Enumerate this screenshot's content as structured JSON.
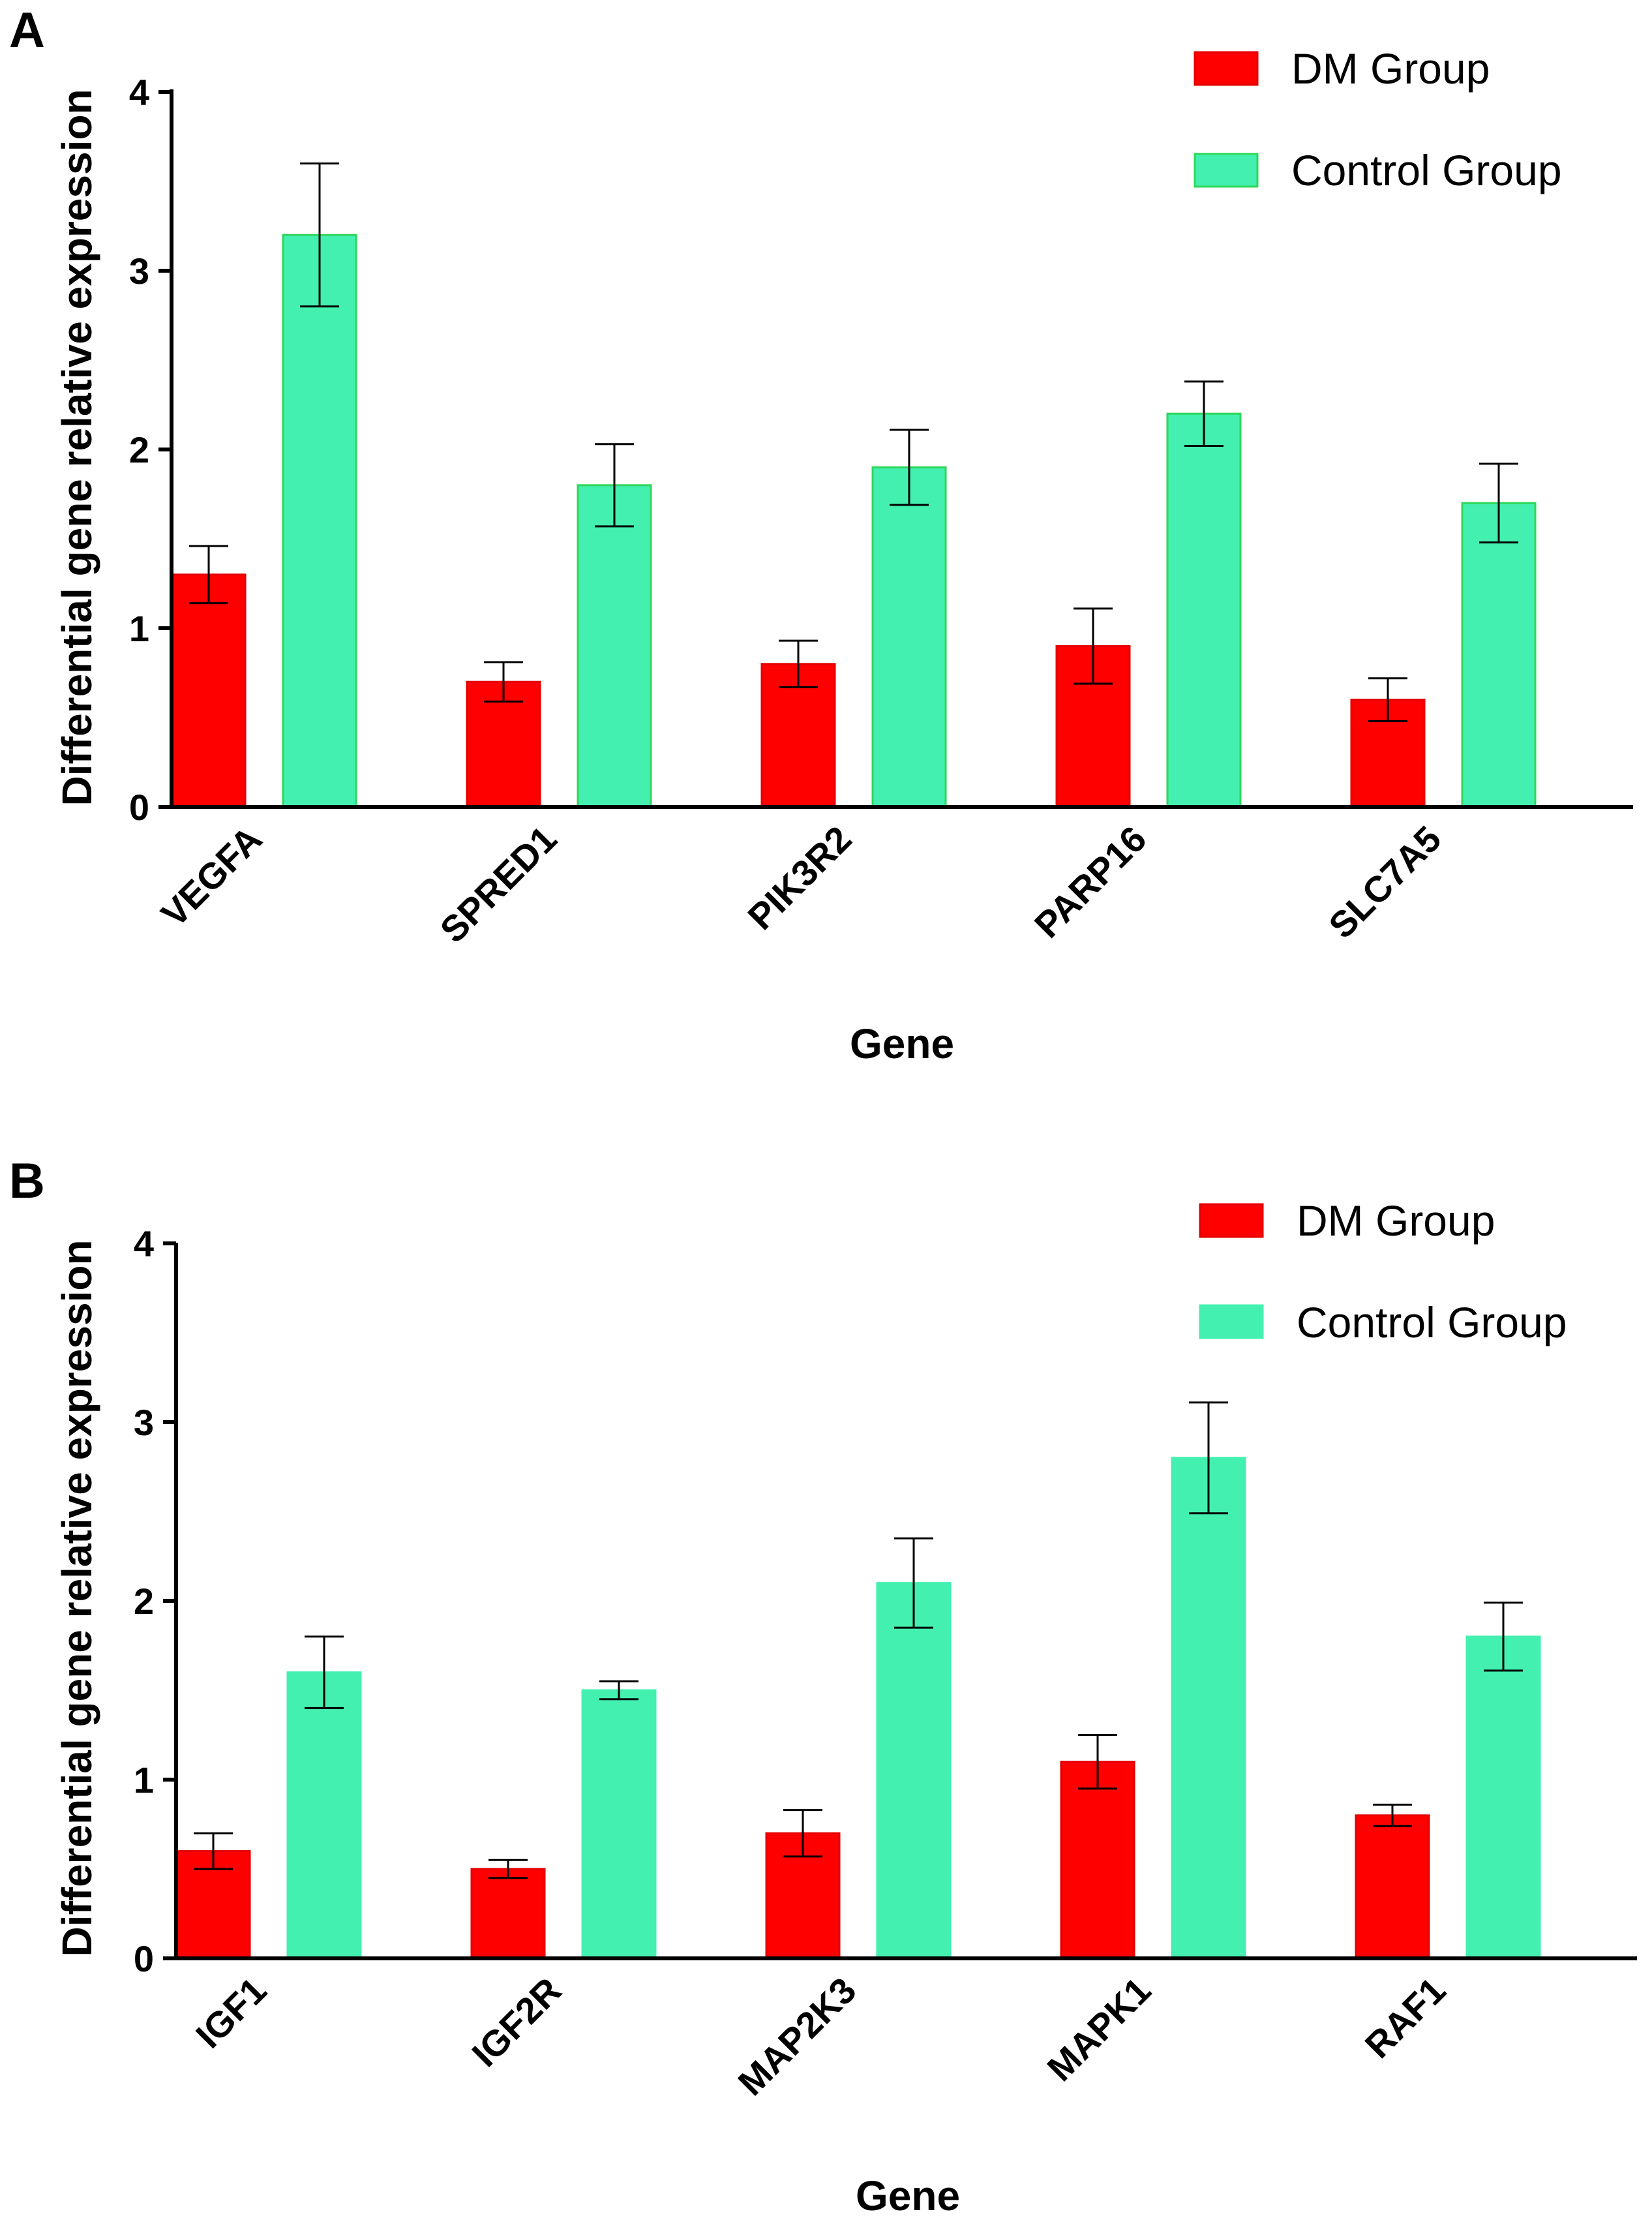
{
  "figure": {
    "panels": [
      "A",
      "B"
    ]
  },
  "legend": {
    "series": [
      {
        "name": "DM Group",
        "color": "#ff0000",
        "edge": "#e60000"
      },
      {
        "name": "Control Group",
        "color": "#43f0b0",
        "edge": "#2fd65a"
      }
    ]
  },
  "chart_data": [
    {
      "panel": "A",
      "type": "bar",
      "xlabel": "Gene",
      "ylabel": "Differential gene relative expression",
      "ylim": [
        0,
        4
      ],
      "yticks": [
        0,
        1,
        2,
        3,
        4
      ],
      "grid": false,
      "legend_position": "top-right",
      "categories": [
        "VEGFA",
        "SPRED1",
        "PIK3R2",
        "PARP16",
        "SLC7A5"
      ],
      "series": [
        {
          "name": "DM Group",
          "values": [
            1.3,
            0.7,
            0.8,
            0.9,
            0.6
          ],
          "errors": [
            0.16,
            0.11,
            0.13,
            0.21,
            0.12
          ]
        },
        {
          "name": "Control Group",
          "values": [
            3.2,
            1.8,
            1.9,
            2.2,
            1.7
          ],
          "errors": [
            0.4,
            0.23,
            0.21,
            0.18,
            0.22
          ]
        }
      ]
    },
    {
      "panel": "B",
      "type": "bar",
      "xlabel": "Gene",
      "ylabel": "Differential gene relative expression",
      "ylim": [
        0,
        4
      ],
      "yticks": [
        0,
        1,
        2,
        3,
        4
      ],
      "grid": false,
      "legend_position": "top-right",
      "categories": [
        "IGF1",
        "IGF2R",
        "MAP2K3",
        "MAPK1",
        "RAF1"
      ],
      "series": [
        {
          "name": "DM Group",
          "values": [
            0.6,
            0.5,
            0.7,
            1.1,
            0.8
          ],
          "errors": [
            0.1,
            0.05,
            0.13,
            0.15,
            0.06
          ]
        },
        {
          "name": "Control Group",
          "values": [
            1.6,
            1.5,
            2.1,
            2.8,
            1.8
          ],
          "errors": [
            0.2,
            0.05,
            0.25,
            0.31,
            0.19
          ]
        }
      ]
    }
  ]
}
